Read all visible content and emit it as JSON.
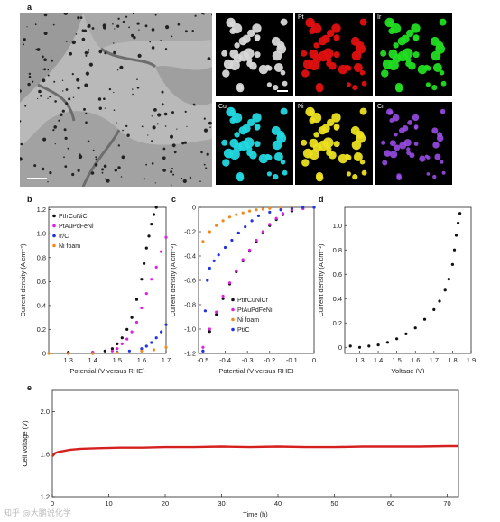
{
  "panels": {
    "a": {
      "letter": "a",
      "tiles": [
        "Pt",
        "Ir",
        "Cu",
        "Ni",
        "Cr"
      ]
    },
    "b": {
      "letter": "b"
    },
    "c": {
      "letter": "c"
    },
    "d": {
      "letter": "d"
    },
    "e": {
      "letter": "e"
    }
  },
  "colors": {
    "PtIrCuNiCr": "#111111",
    "PtAuPdFeNi": "#e020e0",
    "Ir_C": "#2233dd",
    "Ni_foam": "#f08a1c",
    "Pt_C": "#2233dd",
    "stability": "#d62020",
    "map_gray": "#d8d8d8",
    "map_Pt": "#e01010",
    "map_Ir": "#22dd22",
    "map_Cu": "#22d8e0",
    "map_Ni": "#ece020",
    "map_Cr": "#a050f0"
  },
  "watermark": "知乎 @大鹏说化学",
  "chart_data": [
    {
      "id": "b",
      "type": "scatter",
      "xlabel": "Potential (V versus RHE)",
      "ylabel": "Current density (A cm⁻²)",
      "xlim": [
        1.22,
        1.7
      ],
      "ylim": [
        0,
        1.22
      ],
      "xticks": [
        "1.3",
        "1.4",
        "1.5",
        "1.6",
        "1.7"
      ],
      "yticks": [
        "0",
        "0.2",
        "0.4",
        "0.6",
        "0.8",
        "1.0",
        "1.2"
      ],
      "legend": "top-left",
      "series": [
        {
          "name": "PtIrCuNiCr",
          "color": "#111111",
          "x": [
            1.3,
            1.4,
            1.45,
            1.48,
            1.5,
            1.52,
            1.54,
            1.56,
            1.58,
            1.6,
            1.61,
            1.62,
            1.63,
            1.64,
            1.65,
            1.66
          ],
          "y": [
            0.01,
            0.01,
            0.02,
            0.04,
            0.08,
            0.13,
            0.2,
            0.3,
            0.45,
            0.62,
            0.75,
            0.88,
            0.98,
            1.08,
            1.16,
            1.22
          ]
        },
        {
          "name": "PtAuPdFeNi",
          "color": "#e020e0",
          "x": [
            1.3,
            1.4,
            1.48,
            1.5,
            1.52,
            1.54,
            1.56,
            1.58,
            1.6,
            1.62,
            1.64,
            1.66,
            1.68,
            1.7
          ],
          "y": [
            0.0,
            0.01,
            0.02,
            0.04,
            0.08,
            0.12,
            0.18,
            0.26,
            0.38,
            0.5,
            0.62,
            0.72,
            0.85,
            0.97
          ]
        },
        {
          "name": "Ir/C",
          "color": "#2233dd",
          "x": [
            1.3,
            1.4,
            1.5,
            1.55,
            1.6,
            1.62,
            1.64,
            1.66,
            1.68,
            1.7
          ],
          "y": [
            0.0,
            0.0,
            0.01,
            0.02,
            0.04,
            0.06,
            0.09,
            0.13,
            0.18,
            0.24
          ]
        },
        {
          "name": "Ni foam",
          "color": "#f08a1c",
          "x": [
            1.22,
            1.3,
            1.4,
            1.5,
            1.6,
            1.65,
            1.7
          ],
          "y": [
            0.0,
            0.0,
            0.0,
            0.005,
            0.02,
            0.03,
            0.05
          ]
        }
      ]
    },
    {
      "id": "c",
      "type": "scatter",
      "xlabel": "Potential (V versus RHE)",
      "ylabel": "Current density (A cm⁻²)",
      "xlim": [
        -0.52,
        0.0
      ],
      "ylim": [
        -1.2,
        0.0
      ],
      "xticks": [
        "-0.5",
        "-0.4",
        "-0.3",
        "-0.2",
        "-0.1",
        "0"
      ],
      "yticks": [
        "0",
        "-0.2",
        "-0.4",
        "-0.6",
        "-0.8",
        "-1.0",
        "-1.2"
      ],
      "legend": "bottom-right",
      "series": [
        {
          "name": "PtIrCuNiCr",
          "color": "#111111",
          "x": [
            -0.5,
            -0.47,
            -0.44,
            -0.41,
            -0.38,
            -0.35,
            -0.32,
            -0.29,
            -0.26,
            -0.23,
            -0.2,
            -0.17,
            -0.14,
            -0.1,
            -0.05,
            0.0
          ],
          "y": [
            -1.18,
            -1.02,
            -0.88,
            -0.75,
            -0.63,
            -0.53,
            -0.44,
            -0.36,
            -0.28,
            -0.21,
            -0.15,
            -0.1,
            -0.06,
            -0.03,
            -0.01,
            0.0
          ]
        },
        {
          "name": "PtAuPdFeNi",
          "color": "#e020e0",
          "x": [
            -0.5,
            -0.47,
            -0.44,
            -0.41,
            -0.38,
            -0.35,
            -0.32,
            -0.29,
            -0.26,
            -0.23,
            -0.2,
            -0.17,
            -0.14,
            -0.1,
            -0.05,
            0.0
          ],
          "y": [
            -1.15,
            -1.0,
            -0.86,
            -0.73,
            -0.62,
            -0.52,
            -0.43,
            -0.35,
            -0.27,
            -0.2,
            -0.14,
            -0.09,
            -0.05,
            -0.02,
            -0.01,
            0.0
          ]
        },
        {
          "name": "Ni foam",
          "color": "#f08a1c",
          "x": [
            -0.5,
            -0.47,
            -0.44,
            -0.41,
            -0.38,
            -0.35,
            -0.32,
            -0.29,
            -0.26,
            -0.23,
            -0.2,
            -0.15,
            -0.1,
            -0.05,
            0.0
          ],
          "y": [
            -0.28,
            -0.2,
            -0.15,
            -0.11,
            -0.08,
            -0.06,
            -0.045,
            -0.03,
            -0.02,
            -0.015,
            -0.01,
            -0.005,
            -0.003,
            -0.001,
            0.0
          ]
        },
        {
          "name": "Pt/C",
          "color": "#2233dd",
          "x": [
            -0.5,
            -0.49,
            -0.48,
            -0.47,
            -0.45,
            -0.43,
            -0.4,
            -0.37,
            -0.34,
            -0.31,
            -0.28,
            -0.25,
            -0.2,
            -0.15,
            -0.1,
            -0.05,
            0.0
          ],
          "y": [
            -1.18,
            -0.85,
            -0.6,
            -0.5,
            -0.44,
            -0.39,
            -0.33,
            -0.27,
            -0.21,
            -0.16,
            -0.11,
            -0.07,
            -0.04,
            -0.02,
            -0.01,
            0.0,
            0.0
          ]
        }
      ]
    },
    {
      "id": "d",
      "type": "scatter",
      "xlabel": "Voltage (V)",
      "ylabel": "Current density (A cm⁻²)",
      "xlim": [
        1.22,
        1.9
      ],
      "ylim": [
        -0.05,
        1.15
      ],
      "xticks": [
        "1.3",
        "1.4",
        "1.5",
        "1.6",
        "1.7",
        "1.8",
        "1.9"
      ],
      "yticks": [
        "0",
        "0.2",
        "0.4",
        "0.6",
        "0.8",
        "1.0"
      ],
      "series": [
        {
          "name": "",
          "color": "#111111",
          "x": [
            1.25,
            1.3,
            1.35,
            1.4,
            1.45,
            1.5,
            1.55,
            1.6,
            1.65,
            1.7,
            1.73,
            1.76,
            1.78,
            1.8,
            1.81,
            1.82,
            1.83,
            1.84
          ],
          "y": [
            0.01,
            0.0,
            0.01,
            0.02,
            0.04,
            0.07,
            0.11,
            0.16,
            0.23,
            0.31,
            0.38,
            0.47,
            0.56,
            0.68,
            0.8,
            0.92,
            1.02,
            1.1
          ]
        }
      ]
    },
    {
      "id": "e",
      "type": "line",
      "xlabel": "Time (h)",
      "ylabel": "Cell voltage (V)",
      "xlim": [
        0,
        72
      ],
      "ylim": [
        1.2,
        2.2
      ],
      "xticks": [
        "0",
        "10",
        "20",
        "30",
        "40",
        "50",
        "60",
        "70"
      ],
      "yticks": [
        "1.2",
        "1.6",
        "2.0"
      ],
      "series": [
        {
          "name": "",
          "color": "#d62020",
          "x": [
            0,
            0.5,
            1,
            2,
            3,
            5,
            8,
            12,
            16,
            20,
            25,
            30,
            35,
            40,
            45,
            50,
            55,
            60,
            65,
            70,
            72
          ],
          "y": [
            1.58,
            1.61,
            1.62,
            1.63,
            1.64,
            1.65,
            1.655,
            1.66,
            1.66,
            1.665,
            1.665,
            1.67,
            1.665,
            1.67,
            1.665,
            1.665,
            1.67,
            1.67,
            1.67,
            1.675,
            1.675
          ]
        }
      ]
    }
  ]
}
